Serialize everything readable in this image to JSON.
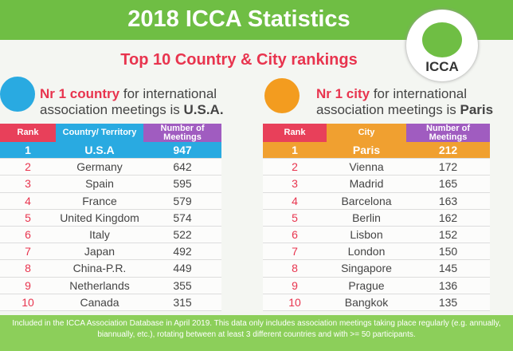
{
  "header": {
    "title": "2018 ICCA Statistics",
    "logo": "ICCA",
    "subtitle": "Top 10 Country & City rankings"
  },
  "country": {
    "headline": {
      "highlight": "Nr 1 country",
      "text": "for international association meetings is",
      "winner": "U.S.A."
    },
    "columns": [
      "Rank",
      "Country/ Territory",
      "Number of Meetings"
    ],
    "rows": [
      [
        1,
        "U.S.A",
        947
      ],
      [
        2,
        "Germany",
        642
      ],
      [
        3,
        "Spain",
        595
      ],
      [
        4,
        "France",
        579
      ],
      [
        5,
        "United Kingdom",
        574
      ],
      [
        6,
        "Italy",
        522
      ],
      [
        7,
        "Japan",
        492
      ],
      [
        8,
        "China-P.R.",
        449
      ],
      [
        9,
        "Netherlands",
        355
      ],
      [
        10,
        "Canada",
        315
      ]
    ]
  },
  "city": {
    "headline": {
      "highlight": "Nr 1 city",
      "text": "for international association meetings is",
      "winner": "Paris"
    },
    "columns": [
      "Rank",
      "City",
      "Number of Meetings"
    ],
    "rows": [
      [
        1,
        "Paris",
        212
      ],
      [
        2,
        "Vienna",
        172
      ],
      [
        3,
        "Madrid",
        165
      ],
      [
        4,
        "Barcelona",
        163
      ],
      [
        5,
        "Berlin",
        162
      ],
      [
        6,
        "Lisbon",
        152
      ],
      [
        7,
        "London",
        150
      ],
      [
        8,
        "Singapore",
        145
      ],
      [
        9,
        "Prague",
        136
      ],
      [
        10,
        "Bangkok",
        135
      ]
    ]
  },
  "footer": "Included in the ICCA Association Database in April 2019. This data only includes association meetings taking place regularly (e.g. annually, biannually, etc.), rotating between at least 3 different countries and with >= 50 participants."
}
